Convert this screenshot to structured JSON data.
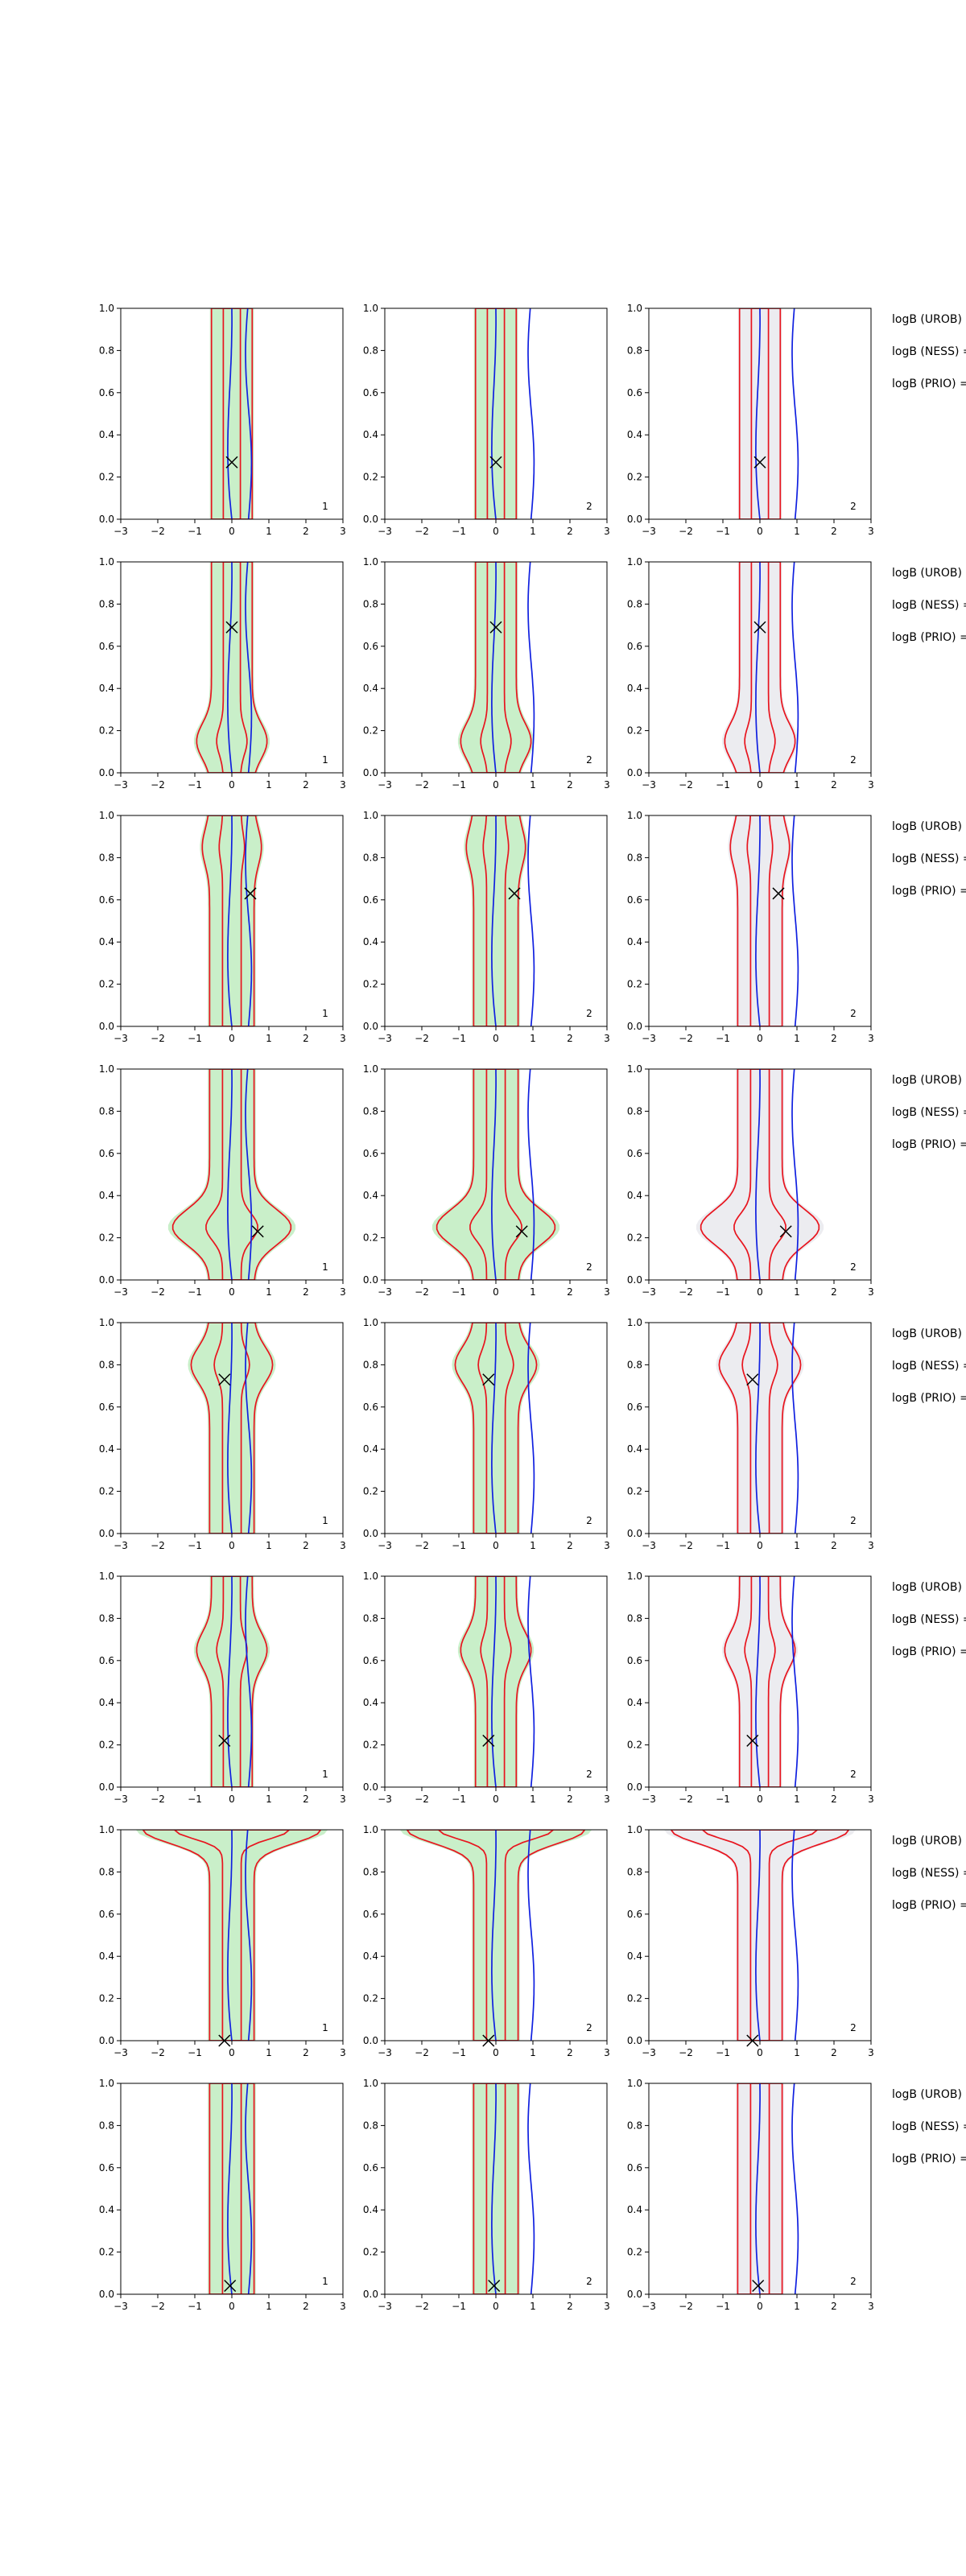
{
  "chart_data": {
    "type": "contour",
    "xlim": [
      -3,
      3
    ],
    "ylim": [
      0,
      1
    ],
    "xticks": [
      -3,
      -2,
      -1,
      0,
      1,
      2,
      3
    ],
    "yticks": [
      "0.0",
      "0.2",
      "0.4",
      "0.6",
      "0.8",
      "1.0"
    ],
    "grid": false,
    "column_panel_labels": [
      "1",
      "2",
      "2"
    ],
    "side_labels": [
      "logB (UROB) =",
      "logB (NESS) =",
      "logB (PRIO) ="
    ],
    "colors": {
      "red_contour": "#e8141e",
      "blue_contour": "#1020e0",
      "green_fill": "#bfecbf",
      "grey_fill": "#dcdce4",
      "marker": "#000000"
    },
    "rows": [
      {
        "marker": [
          0.0,
          0.27
        ],
        "blue_center": 0.0,
        "red_width": 0.55,
        "red_bulge": [
          0.0,
          0
        ],
        "cap": false
      },
      {
        "marker": [
          0.0,
          0.69
        ],
        "blue_center": 0.0,
        "red_width": 0.55,
        "red_bulge": [
          0.15,
          0.4
        ],
        "cap": false
      },
      {
        "marker": [
          0.5,
          0.63
        ],
        "blue_center": 0.0,
        "red_width": 0.6,
        "red_bulge": [
          0.85,
          0.2
        ],
        "cap": false
      },
      {
        "marker": [
          0.7,
          0.23
        ],
        "blue_center": 0.0,
        "red_width": 0.6,
        "red_bulge": [
          0.25,
          1.0
        ],
        "cap": false
      },
      {
        "marker": [
          -0.2,
          0.73
        ],
        "blue_center": 0.0,
        "red_width": 0.6,
        "red_bulge": [
          0.8,
          0.5
        ],
        "cap": false
      },
      {
        "marker": [
          -0.2,
          0.22
        ],
        "blue_center": 0.0,
        "red_width": 0.55,
        "red_bulge": [
          0.65,
          0.4
        ],
        "cap": false
      },
      {
        "marker": [
          -0.2,
          0.0
        ],
        "blue_center": 0.0,
        "red_width": 0.6,
        "red_bulge": [
          1.0,
          0
        ],
        "cap": true
      },
      {
        "marker": [
          -0.05,
          0.04
        ],
        "blue_center": 0.0,
        "red_width": 0.6,
        "red_bulge": [
          0.0,
          0
        ],
        "cap": false
      }
    ]
  }
}
